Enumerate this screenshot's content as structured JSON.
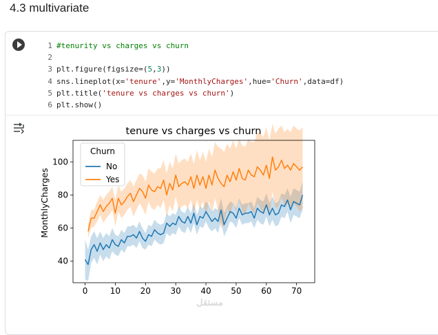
{
  "section_heading": "4.3 multivariate",
  "code_lines": [
    {
      "num": "1",
      "text": "#tenurity vs charges vs churn",
      "kind": "comment"
    },
    {
      "num": "2",
      "text": "",
      "kind": "blank"
    },
    {
      "num": "3",
      "text": "plt.figure(figsize=(5,3))",
      "kind": "code"
    },
    {
      "num": "4",
      "text": "sns.lineplot(x='tenure',y='MonthlyCharges',hue='Churn',data=df)",
      "kind": "code"
    },
    {
      "num": "5",
      "text": "plt.title('tenure vs charges vs churn')",
      "kind": "code"
    },
    {
      "num": "6",
      "text": "plt.show()",
      "kind": "code"
    }
  ],
  "icons": {
    "run": "play-circle-icon",
    "output": "output-toggle-icon"
  },
  "colors": {
    "code_default": "#1f1f1f",
    "code_comment": "#008000",
    "code_string": "#a31515",
    "code_number": "#098658",
    "series_no": "#1f77b4",
    "series_yes": "#ff7f0e"
  },
  "watermark_text": "مستقل",
  "chart_data": {
    "type": "line",
    "title": "tenure vs charges vs churn",
    "xlabel": "tenure",
    "ylabel": "MonthlyCharges",
    "xlim": [
      -4,
      76
    ],
    "ylim": [
      27,
      113
    ],
    "xticks": [
      0,
      10,
      20,
      30,
      40,
      50,
      60,
      70
    ],
    "yticks": [
      40,
      60,
      80,
      100
    ],
    "legend_title": "Churn",
    "legend_position": "top-left",
    "grid": false,
    "series": [
      {
        "name": "No",
        "color": "#1f77b4",
        "x": [
          0,
          1,
          2,
          3,
          4,
          5,
          6,
          7,
          8,
          9,
          10,
          11,
          12,
          13,
          14,
          15,
          16,
          17,
          18,
          19,
          20,
          21,
          22,
          23,
          24,
          25,
          26,
          27,
          28,
          29,
          30,
          31,
          32,
          33,
          34,
          35,
          36,
          37,
          38,
          39,
          40,
          41,
          42,
          43,
          44,
          45,
          46,
          47,
          48,
          49,
          50,
          51,
          52,
          53,
          54,
          55,
          56,
          57,
          58,
          59,
          60,
          61,
          62,
          63,
          64,
          65,
          66,
          67,
          68,
          69,
          70,
          71,
          72
        ],
        "y": [
          41,
          38,
          47,
          50,
          46,
          51,
          47,
          50,
          48,
          53,
          50,
          49,
          53,
          51,
          55,
          55,
          56,
          54,
          58,
          54,
          52,
          56,
          55,
          59,
          57,
          56,
          57,
          63,
          61,
          63,
          62,
          67,
          64,
          63,
          67,
          63,
          69,
          62,
          67,
          66,
          70,
          67,
          64,
          66,
          64,
          71,
          62,
          66,
          70,
          69,
          66,
          72,
          68,
          69,
          69,
          70,
          66,
          72,
          70,
          69,
          74,
          68,
          72,
          68,
          69,
          74,
          73,
          77,
          71,
          76,
          75,
          74,
          80
        ],
        "lower": [
          29,
          28,
          39,
          42,
          38,
          44,
          40,
          43,
          41,
          46,
          44,
          43,
          47,
          45,
          49,
          49,
          50,
          48,
          52,
          48,
          47,
          50,
          49,
          53,
          51,
          50,
          51,
          57,
          55,
          57,
          56,
          61,
          58,
          57,
          61,
          57,
          63,
          56,
          61,
          60,
          64,
          60,
          58,
          60,
          57,
          64,
          55,
          59,
          64,
          63,
          60,
          66,
          62,
          63,
          63,
          64,
          60,
          65,
          63,
          62,
          67,
          61,
          65,
          61,
          62,
          67,
          66,
          70,
          63,
          68,
          67,
          66,
          71
        ],
        "upper": [
          53,
          47,
          55,
          58,
          54,
          58,
          54,
          57,
          55,
          60,
          56,
          55,
          59,
          57,
          61,
          61,
          62,
          60,
          64,
          60,
          57,
          62,
          61,
          65,
          63,
          62,
          63,
          69,
          67,
          69,
          68,
          73,
          70,
          69,
          73,
          69,
          75,
          68,
          73,
          72,
          76,
          74,
          70,
          72,
          71,
          78,
          69,
          73,
          76,
          75,
          72,
          78,
          74,
          75,
          75,
          76,
          72,
          79,
          77,
          76,
          81,
          75,
          79,
          75,
          76,
          81,
          80,
          84,
          79,
          84,
          83,
          82,
          88
        ]
      },
      {
        "name": "Yes",
        "color": "#ff7f0e",
        "x": [
          1,
          2,
          3,
          4,
          5,
          6,
          7,
          8,
          9,
          10,
          11,
          12,
          13,
          14,
          15,
          16,
          17,
          18,
          19,
          20,
          21,
          22,
          23,
          24,
          25,
          26,
          27,
          28,
          29,
          30,
          31,
          32,
          33,
          34,
          35,
          36,
          37,
          38,
          39,
          40,
          41,
          42,
          43,
          44,
          45,
          46,
          47,
          48,
          49,
          50,
          51,
          52,
          53,
          54,
          55,
          56,
          57,
          58,
          59,
          60,
          61,
          62,
          63,
          64,
          65,
          66,
          67,
          68,
          69,
          70,
          71,
          72
        ],
        "y": [
          58,
          66,
          66,
          70,
          74,
          70,
          73,
          75,
          78,
          69,
          78,
          74,
          76,
          79,
          81,
          76,
          80,
          84,
          82,
          78,
          86,
          83,
          82,
          85,
          84,
          89,
          80,
          87,
          83,
          92,
          85,
          87,
          88,
          86,
          91,
          84,
          92,
          86,
          91,
          84,
          92,
          86,
          95,
          90,
          87,
          85,
          92,
          88,
          94,
          89,
          96,
          90,
          89,
          95,
          92,
          91,
          97,
          95,
          92,
          98,
          90,
          103,
          95,
          97,
          101,
          96,
          98,
          95,
          99,
          97,
          95,
          97
        ],
        "lower": [
          54,
          60,
          61,
          64,
          68,
          63,
          66,
          68,
          71,
          61,
          70,
          66,
          68,
          71,
          73,
          67,
          71,
          75,
          72,
          68,
          76,
          72,
          71,
          74,
          72,
          77,
          67,
          74,
          70,
          79,
          71,
          73,
          74,
          72,
          77,
          69,
          77,
          71,
          76,
          68,
          76,
          69,
          78,
          71,
          60,
          62,
          72,
          67,
          75,
          70,
          77,
          70,
          68,
          75,
          71,
          69,
          75,
          72,
          68,
          74,
          67,
          82,
          72,
          73,
          79,
          73,
          75,
          71,
          75,
          73,
          70,
          72
        ],
        "upper": [
          62,
          71,
          71,
          76,
          80,
          77,
          80,
          82,
          85,
          77,
          86,
          82,
          84,
          87,
          89,
          85,
          89,
          93,
          92,
          88,
          96,
          94,
          93,
          96,
          96,
          101,
          93,
          100,
          96,
          105,
          99,
          101,
          102,
          100,
          105,
          99,
          107,
          101,
          106,
          100,
          108,
          103,
          112,
          109,
          108,
          106,
          111,
          108,
          113,
          108,
          114,
          110,
          109,
          114,
          112,
          112,
          118,
          117,
          115,
          121,
          113,
          123,
          117,
          120,
          122,
          118,
          120,
          118,
          122,
          120,
          119,
          121
        ]
      }
    ]
  }
}
